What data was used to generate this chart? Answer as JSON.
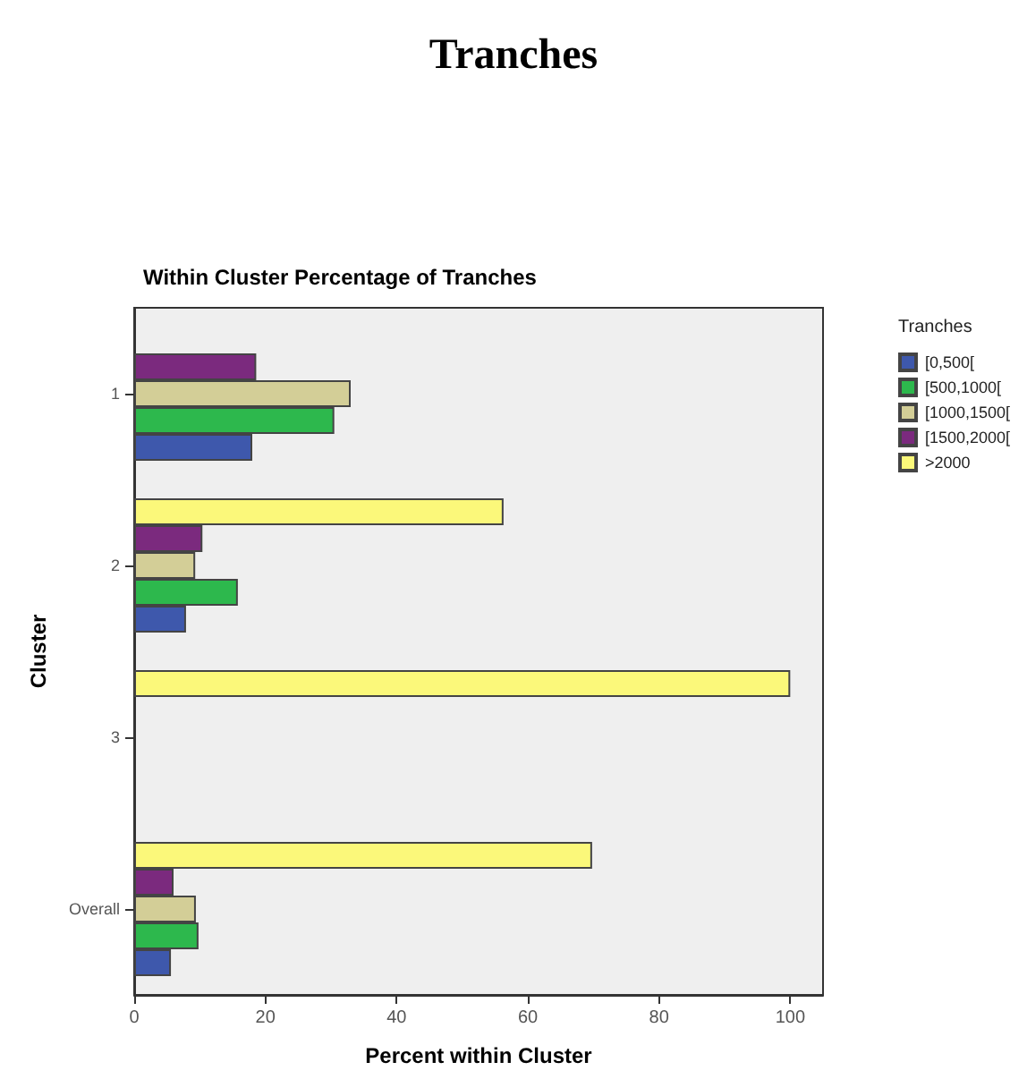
{
  "chart_data": {
    "type": "bar",
    "orientation": "horizontal",
    "title": "Tranches",
    "subtitle": "Within Cluster Percentage of Tranches",
    "xlabel": "Percent within Cluster",
    "ylabel": "Cluster",
    "legend_title": "Tranches",
    "legend": "top right",
    "grid": false,
    "categories": [
      "1",
      "2",
      "3",
      "Overall"
    ],
    "series": [
      {
        "name": "[0,500[",
        "color": "#3e58ac",
        "values": [
          18.0,
          7.9,
          null,
          5.6
        ]
      },
      {
        "name": "[500,1000[",
        "color": "#2db84d",
        "values": [
          30.5,
          15.8,
          null,
          9.8
        ]
      },
      {
        "name": "[1000,1500[",
        "color": "#d3ce97",
        "values": [
          33.0,
          9.3,
          null,
          9.4
        ]
      },
      {
        "name": "[1500,2000[",
        "color": "#7b2a7e",
        "values": [
          18.6,
          10.4,
          null,
          6.0
        ]
      },
      {
        "name": ">2000",
        "color": "#fbf87a",
        "values": [
          null,
          56.3,
          100,
          69.8
        ]
      }
    ],
    "xlim": [
      0,
      105
    ],
    "xticks": [
      0,
      20,
      40,
      60,
      80,
      100
    ]
  }
}
